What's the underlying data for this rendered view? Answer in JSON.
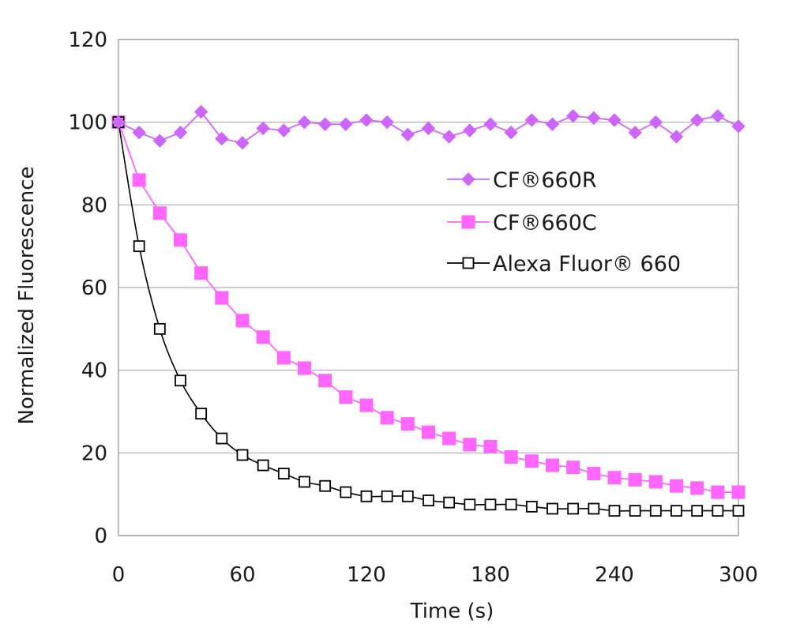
{
  "chart_data": {
    "type": "line",
    "title": "",
    "xlabel": "Time (s)",
    "ylabel": "Normalized  Fluorescence",
    "xlim": [
      0,
      300
    ],
    "ylim": [
      0,
      120
    ],
    "xticks": [
      "0",
      "60",
      "120",
      "180",
      "240",
      "300"
    ],
    "yticks": [
      "0",
      "20",
      "40",
      "60",
      "80",
      "100",
      "120"
    ],
    "grid": "horizontal",
    "legend_position": "right-center",
    "x": [
      0,
      10,
      20,
      30,
      40,
      50,
      60,
      70,
      80,
      90,
      100,
      110,
      120,
      130,
      140,
      150,
      160,
      170,
      180,
      190,
      200,
      210,
      220,
      230,
      240,
      250,
      260,
      270,
      280,
      290,
      300
    ],
    "series": [
      {
        "name": "CF®660R",
        "color": "#cc66ff",
        "marker": "diamond",
        "values": [
          100,
          97.5,
          95.5,
          97.5,
          102.5,
          96,
          95,
          98.5,
          98,
          100,
          99.5,
          99.5,
          100.5,
          100,
          97,
          98.5,
          96.5,
          98,
          99.5,
          97.5,
          100.5,
          99.5,
          101.5,
          101,
          100.5,
          97.5,
          100,
          96.5,
          100.5,
          101.5,
          99
        ]
      },
      {
        "name": "CF®660C",
        "color": "#ff66ff",
        "marker": "square-filled",
        "values": [
          100,
          86,
          78,
          71.5,
          63.5,
          57.5,
          52,
          48,
          43,
          40.5,
          37.5,
          33.5,
          31.5,
          28.5,
          27,
          25,
          23.5,
          22,
          21.5,
          19,
          18,
          17,
          16.5,
          15,
          14,
          13.5,
          13,
          12,
          11.5,
          10.5,
          10.5
        ]
      },
      {
        "name": "Alexa Fluor®  660",
        "color": "#000000",
        "marker": "square-open",
        "values": [
          100,
          70,
          50,
          37.5,
          29.5,
          23.5,
          19.5,
          17,
          15,
          13,
          12,
          10.5,
          9.5,
          9.5,
          9.5,
          8.5,
          8,
          7.5,
          7.5,
          7.5,
          7,
          6.5,
          6.5,
          6.5,
          6,
          6,
          6,
          6,
          6,
          6,
          6
        ]
      }
    ]
  }
}
